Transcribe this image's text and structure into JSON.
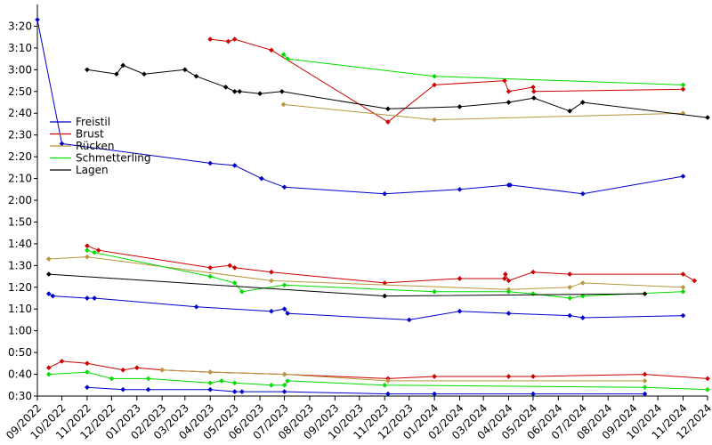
{
  "chart_data": {
    "type": "line",
    "title": "",
    "xlabel": "",
    "ylabel": "",
    "grid": false,
    "legend_position": "upper-left",
    "x_range": [
      "2022-09-01",
      "2024-12-01"
    ],
    "y_range_seconds": [
      30,
      210
    ],
    "x_ticks": [
      "09/2022",
      "10/2022",
      "11/2022",
      "12/2022",
      "01/2023",
      "02/2023",
      "03/2023",
      "04/2023",
      "05/2023",
      "06/2023",
      "07/2023",
      "08/2023",
      "09/2023",
      "10/2023",
      "11/2023",
      "12/2023",
      "01/2024",
      "02/2024",
      "03/2024",
      "04/2024",
      "05/2024",
      "06/2024",
      "07/2024",
      "08/2024",
      "09/2024",
      "10/2024",
      "11/2024",
      "12/2024"
    ],
    "y_ticks": [
      "0:30",
      "0:40",
      "0:50",
      "1:00",
      "1:10",
      "1:20",
      "1:30",
      "1:40",
      "1:50",
      "2:00",
      "2:10",
      "2:20",
      "2:30",
      "2:40",
      "2:50",
      "3:00",
      "3:10",
      "3:20"
    ],
    "y_tick_seconds": [
      30,
      40,
      50,
      60,
      70,
      80,
      90,
      100,
      110,
      120,
      130,
      140,
      150,
      160,
      170,
      180,
      190,
      200
    ],
    "legend": [
      {
        "name": "Freistil",
        "color": "#0000cc"
      },
      {
        "name": "Brust",
        "color": "#cc0000"
      },
      {
        "name": "Rücken",
        "color": "#b8963c"
      },
      {
        "name": "Schmetterling",
        "color": "#00dd00"
      },
      {
        "name": "Lagen",
        "color": "#000000"
      }
    ],
    "series": [
      {
        "name": "Freistil",
        "color": "#0000cc",
        "points": [
          [
            "2022-09-01",
            203
          ],
          [
            "2022-10-01",
            146
          ],
          [
            "2023-04-01",
            137
          ],
          [
            "2023-05-01",
            136
          ],
          [
            "2023-06-03",
            130
          ],
          [
            "2023-07-01",
            126
          ],
          [
            "2023-11-01",
            123
          ],
          [
            "2024-02-01",
            125
          ],
          [
            "2024-04-01",
            127
          ],
          [
            "2024-04-03",
            127
          ],
          [
            "2024-07-01",
            123
          ],
          [
            "2024-11-01",
            131
          ]
        ]
      },
      {
        "name": "Brust",
        "color": "#cc0000",
        "points": [
          [
            "2023-04-01",
            194
          ],
          [
            "2023-04-23",
            193
          ],
          [
            "2023-05-01",
            194
          ],
          [
            "2023-06-15",
            189
          ],
          [
            "2023-11-05",
            156
          ],
          [
            "2024-01-01",
            173
          ],
          [
            "2024-03-27",
            175
          ],
          [
            "2024-04-01",
            170
          ],
          [
            "2024-05-01",
            172
          ],
          [
            "2024-05-02",
            170
          ],
          [
            "2024-11-01",
            171
          ]
        ]
      },
      {
        "name": "Rücken",
        "color": "#b8963c",
        "points": [
          [
            "2023-06-30",
            164
          ],
          [
            "2024-01-01",
            157
          ],
          [
            "2024-11-01",
            160
          ]
        ]
      },
      {
        "name": "Schmetterling",
        "color": "#00dd00",
        "points": [
          [
            "2023-06-30",
            187
          ],
          [
            "2023-07-05",
            185
          ],
          [
            "2024-01-01",
            177
          ],
          [
            "2024-11-01",
            173
          ]
        ]
      },
      {
        "name": "Lagen",
        "color": "#000000",
        "points": [
          [
            "2022-11-01",
            180
          ],
          [
            "2022-12-07",
            178
          ],
          [
            "2022-12-15",
            182
          ],
          [
            "2023-01-10",
            178
          ],
          [
            "2023-03-01",
            180
          ],
          [
            "2023-03-15",
            177
          ],
          [
            "2023-04-20",
            172
          ],
          [
            "2023-05-01",
            170
          ],
          [
            "2023-05-07",
            170
          ],
          [
            "2023-06-01",
            169
          ],
          [
            "2023-06-28",
            170
          ],
          [
            "2023-11-05",
            162
          ],
          [
            "2024-02-01",
            163
          ],
          [
            "2024-04-01",
            165
          ],
          [
            "2024-05-02",
            167
          ],
          [
            "2024-06-15",
            161
          ],
          [
            "2024-07-01",
            165
          ],
          [
            "2024-12-01",
            158
          ]
        ]
      },
      {
        "name": "Freistil",
        "color": "#0000cc",
        "points": [
          [
            "2022-09-15",
            77
          ],
          [
            "2022-09-20",
            76
          ],
          [
            "2022-11-01",
            75
          ],
          [
            "2022-11-10",
            75
          ],
          [
            "2023-03-15",
            71
          ],
          [
            "2023-06-15",
            69
          ],
          [
            "2023-07-01",
            70
          ],
          [
            "2023-07-05",
            68
          ],
          [
            "2023-12-01",
            65
          ],
          [
            "2024-02-01",
            69
          ],
          [
            "2024-04-01",
            68
          ],
          [
            "2024-06-15",
            67
          ],
          [
            "2024-07-01",
            66
          ],
          [
            "2024-11-01",
            67
          ]
        ]
      },
      {
        "name": "Brust",
        "color": "#cc0000",
        "points": [
          [
            "2022-11-01",
            99
          ],
          [
            "2022-11-15",
            97
          ],
          [
            "2023-04-01",
            89
          ],
          [
            "2023-04-25",
            90
          ],
          [
            "2023-05-01",
            89
          ],
          [
            "2023-06-15",
            87
          ],
          [
            "2023-11-01",
            82
          ],
          [
            "2024-02-01",
            84
          ],
          [
            "2024-03-27",
            84
          ],
          [
            "2024-03-28",
            86
          ],
          [
            "2024-04-01",
            83
          ],
          [
            "2024-05-01",
            87
          ],
          [
            "2024-06-15",
            86
          ],
          [
            "2024-11-01",
            86
          ],
          [
            "2024-11-15",
            83
          ]
        ]
      },
      {
        "name": "Rücken",
        "color": "#b8963c",
        "points": [
          [
            "2022-09-15",
            93
          ],
          [
            "2022-11-01",
            94
          ],
          [
            "2023-06-15",
            83
          ],
          [
            "2024-04-01",
            79
          ],
          [
            "2024-06-15",
            80
          ],
          [
            "2024-07-01",
            82
          ],
          [
            "2024-11-01",
            80
          ]
        ]
      },
      {
        "name": "Schmetterling",
        "color": "#00dd00",
        "points": [
          [
            "2022-11-01",
            97
          ],
          [
            "2022-11-10",
            96
          ],
          [
            "2023-04-01",
            85
          ],
          [
            "2023-05-01",
            82
          ],
          [
            "2023-05-10",
            78
          ],
          [
            "2023-07-01",
            81
          ],
          [
            "2024-01-01",
            78
          ],
          [
            "2024-04-01",
            78
          ],
          [
            "2024-05-01",
            77
          ],
          [
            "2024-06-15",
            75
          ],
          [
            "2024-07-01",
            76
          ],
          [
            "2024-11-01",
            78
          ]
        ]
      },
      {
        "name": "Lagen",
        "color": "#000000",
        "points": [
          [
            "2022-09-15",
            86
          ],
          [
            "2023-11-01",
            76
          ],
          [
            "2024-09-15",
            77
          ]
        ]
      },
      {
        "name": "Freistil",
        "color": "#0000cc",
        "points": [
          [
            "2022-11-01",
            34
          ],
          [
            "2022-12-15",
            33
          ],
          [
            "2023-01-15",
            33
          ],
          [
            "2023-04-01",
            33
          ],
          [
            "2023-05-01",
            32
          ],
          [
            "2023-05-10",
            32
          ],
          [
            "2023-07-01",
            32
          ],
          [
            "2023-11-05",
            31
          ],
          [
            "2024-01-01",
            31
          ],
          [
            "2024-05-01",
            31
          ],
          [
            "2024-09-15",
            31
          ]
        ]
      },
      {
        "name": "Brust",
        "color": "#cc0000",
        "points": [
          [
            "2022-09-15",
            43
          ],
          [
            "2022-10-01",
            46
          ],
          [
            "2022-11-01",
            45
          ],
          [
            "2022-12-15",
            42
          ],
          [
            "2023-01-01",
            43
          ],
          [
            "2023-02-01",
            42
          ],
          [
            "2023-04-01",
            41
          ],
          [
            "2023-07-01",
            40
          ],
          [
            "2023-11-05",
            38
          ],
          [
            "2024-01-01",
            39
          ],
          [
            "2024-04-01",
            39
          ],
          [
            "2024-05-01",
            39
          ],
          [
            "2024-09-15",
            40
          ],
          [
            "2024-12-01",
            38
          ]
        ]
      },
      {
        "name": "Rücken",
        "color": "#b8963c",
        "points": [
          [
            "2023-02-01",
            42
          ],
          [
            "2023-04-01",
            41
          ],
          [
            "2023-07-01",
            40
          ],
          [
            "2023-11-05",
            37
          ],
          [
            "2024-09-15",
            37
          ]
        ]
      },
      {
        "name": "Schmetterling",
        "color": "#00dd00",
        "points": [
          [
            "2022-09-15",
            40
          ],
          [
            "2022-11-01",
            41
          ],
          [
            "2022-12-01",
            38
          ],
          [
            "2023-01-15",
            38
          ],
          [
            "2023-04-01",
            36
          ],
          [
            "2023-04-15",
            37
          ],
          [
            "2023-05-01",
            36
          ],
          [
            "2023-06-15",
            35
          ],
          [
            "2023-07-01",
            35
          ],
          [
            "2023-07-05",
            37
          ],
          [
            "2023-11-01",
            35
          ],
          [
            "2024-09-15",
            34
          ],
          [
            "2024-12-01",
            33
          ]
        ]
      }
    ]
  }
}
